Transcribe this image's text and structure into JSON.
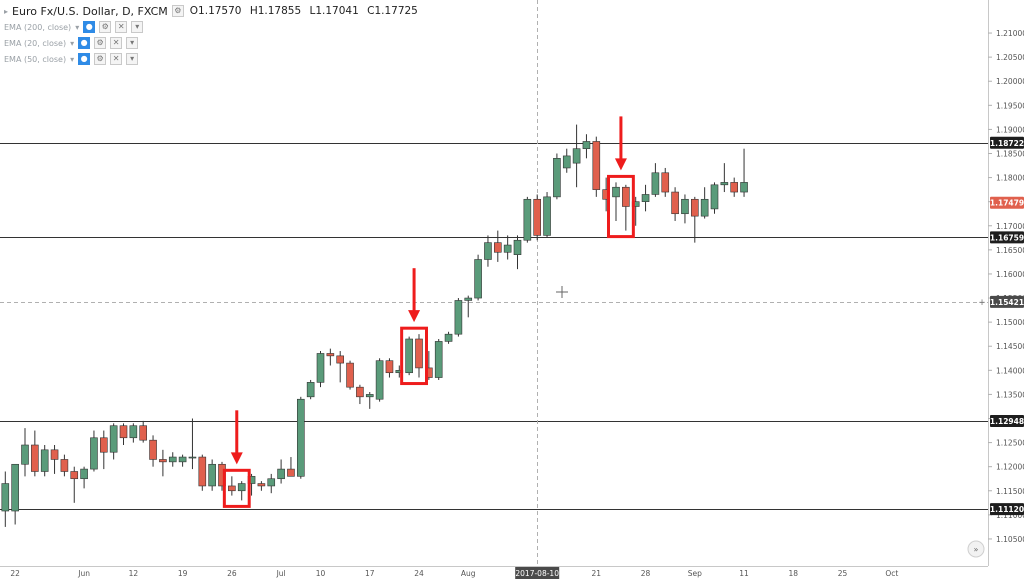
{
  "legend": {
    "title": "Euro Fx/U.S. Dollar, D, FXCM",
    "open": "O1.17570",
    "high": "H1.17855",
    "low": "L1.17041",
    "close": "C1.17725",
    "indicators": [
      "EMA (200, close)",
      "EMA (20, close)",
      "EMA (50, close)"
    ]
  },
  "colors": {
    "up": "#5a9b7a",
    "down": "#e0604d",
    "highlight": "#ee1c1c",
    "hline": "#333333",
    "axis_text": "#555555",
    "price_tag_bg": "#1e1e1e",
    "last_price_bg": "#e0604d"
  },
  "price_labels": [
    "1.21000",
    "1.20500",
    "1.20000",
    "1.19500",
    "1.19000",
    "1.18500",
    "1.18000",
    "1.17500",
    "1.17000",
    "1.16500",
    "1.16000",
    "1.15500",
    "1.15000",
    "1.14500",
    "1.14000",
    "1.13500",
    "1.13000",
    "1.12500",
    "1.12000",
    "1.11500",
    "1.11000",
    "1.10500"
  ],
  "price_tags": [
    {
      "value": 1.18722,
      "label": "1.18722"
    },
    {
      "value": 1.16759,
      "label": "1.16759"
    },
    {
      "value": 1.12948,
      "label": "1.12948"
    },
    {
      "value": 1.1112,
      "label": "1.11120"
    }
  ],
  "last_price": {
    "value": 1.17479,
    "label": "1.17479"
  },
  "crosshair_price": {
    "value": 1.15421,
    "label": "1.15421"
  },
  "date_labels": [
    {
      "label": "22",
      "index": 1
    },
    {
      "label": "Jun",
      "index": 8
    },
    {
      "label": "12",
      "index": 13
    },
    {
      "label": "19",
      "index": 18
    },
    {
      "label": "26",
      "index": 23
    },
    {
      "label": "Jul",
      "index": 28
    },
    {
      "label": "10",
      "index": 32
    },
    {
      "label": "17",
      "index": 37
    },
    {
      "label": "24",
      "index": 42
    },
    {
      "label": "Aug",
      "index": 47
    },
    {
      "label": "2017-08-10",
      "index": 54,
      "highlight": true
    },
    {
      "label": "21",
      "index": 60
    },
    {
      "label": "28",
      "index": 65
    },
    {
      "label": "Sep",
      "index": 70
    },
    {
      "label": "11",
      "index": 75
    },
    {
      "label": "18",
      "index": 80
    },
    {
      "label": "25",
      "index": 85
    },
    {
      "label": "Oct",
      "index": 90
    }
  ],
  "chart_data": {
    "type": "candlestick",
    "title": "Euro Fx/U.S. Dollar, D, FXCM",
    "ylim": [
      1.1025,
      1.2125
    ],
    "grid": false,
    "horizontal_lines": [
      1.18722,
      1.16759,
      1.12948,
      1.1112
    ],
    "candles": [
      {
        "o": 1.1108,
        "h": 1.119,
        "l": 1.1075,
        "c": 1.1165
      },
      {
        "o": 1.1108,
        "h": 1.1205,
        "l": 1.108,
        "c": 1.1205
      },
      {
        "o": 1.1205,
        "h": 1.128,
        "l": 1.118,
        "c": 1.1245
      },
      {
        "o": 1.1245,
        "h": 1.1275,
        "l": 1.118,
        "c": 1.119
      },
      {
        "o": 1.119,
        "h": 1.1245,
        "l": 1.118,
        "c": 1.1235
      },
      {
        "o": 1.1235,
        "h": 1.1245,
        "l": 1.1185,
        "c": 1.1215
      },
      {
        "o": 1.1215,
        "h": 1.1225,
        "l": 1.118,
        "c": 1.119
      },
      {
        "o": 1.119,
        "h": 1.12,
        "l": 1.1125,
        "c": 1.1175
      },
      {
        "o": 1.1175,
        "h": 1.12,
        "l": 1.1155,
        "c": 1.1195
      },
      {
        "o": 1.1195,
        "h": 1.1275,
        "l": 1.119,
        "c": 1.126
      },
      {
        "o": 1.126,
        "h": 1.1275,
        "l": 1.1195,
        "c": 1.123
      },
      {
        "o": 1.123,
        "h": 1.129,
        "l": 1.1215,
        "c": 1.1285
      },
      {
        "o": 1.1285,
        "h": 1.129,
        "l": 1.1245,
        "c": 1.126
      },
      {
        "o": 1.126,
        "h": 1.129,
        "l": 1.125,
        "c": 1.1285
      },
      {
        "o": 1.1285,
        "h": 1.1295,
        "l": 1.125,
        "c": 1.1255
      },
      {
        "o": 1.1255,
        "h": 1.1265,
        "l": 1.12,
        "c": 1.1215
      },
      {
        "o": 1.1215,
        "h": 1.1235,
        "l": 1.118,
        "c": 1.121
      },
      {
        "o": 1.121,
        "h": 1.123,
        "l": 1.12,
        "c": 1.122
      },
      {
        "o": 1.121,
        "h": 1.1225,
        "l": 1.12,
        "c": 1.122
      },
      {
        "o": 1.122,
        "h": 1.13,
        "l": 1.1195,
        "c": 1.122
      },
      {
        "o": 1.122,
        "h": 1.1225,
        "l": 1.115,
        "c": 1.116
      },
      {
        "o": 1.116,
        "h": 1.1215,
        "l": 1.115,
        "c": 1.1205
      },
      {
        "o": 1.1205,
        "h": 1.121,
        "l": 1.115,
        "c": 1.116
      },
      {
        "o": 1.116,
        "h": 1.118,
        "l": 1.114,
        "c": 1.115
      },
      {
        "o": 1.115,
        "h": 1.117,
        "l": 1.113,
        "c": 1.1165
      },
      {
        "o": 1.1165,
        "h": 1.1185,
        "l": 1.114,
        "c": 1.118
      },
      {
        "o": 1.1165,
        "h": 1.117,
        "l": 1.115,
        "c": 1.116
      },
      {
        "o": 1.116,
        "h": 1.1185,
        "l": 1.1145,
        "c": 1.1175
      },
      {
        "o": 1.1175,
        "h": 1.1215,
        "l": 1.1165,
        "c": 1.1195
      },
      {
        "o": 1.1195,
        "h": 1.122,
        "l": 1.1185,
        "c": 1.118
      },
      {
        "o": 1.118,
        "h": 1.1345,
        "l": 1.1175,
        "c": 1.134
      },
      {
        "o": 1.1345,
        "h": 1.138,
        "l": 1.134,
        "c": 1.1375
      },
      {
        "o": 1.1375,
        "h": 1.144,
        "l": 1.1365,
        "c": 1.1435
      },
      {
        "o": 1.1435,
        "h": 1.1445,
        "l": 1.141,
        "c": 1.143
      },
      {
        "o": 1.143,
        "h": 1.144,
        "l": 1.1375,
        "c": 1.1415
      },
      {
        "o": 1.1415,
        "h": 1.142,
        "l": 1.136,
        "c": 1.1365
      },
      {
        "o": 1.1365,
        "h": 1.137,
        "l": 1.133,
        "c": 1.1345
      },
      {
        "o": 1.1345,
        "h": 1.1355,
        "l": 1.132,
        "c": 1.135
      },
      {
        "o": 1.134,
        "h": 1.1425,
        "l": 1.1335,
        "c": 1.142
      },
      {
        "o": 1.142,
        "h": 1.1425,
        "l": 1.1385,
        "c": 1.1395
      },
      {
        "o": 1.1395,
        "h": 1.141,
        "l": 1.1385,
        "c": 1.14
      },
      {
        "o": 1.1395,
        "h": 1.147,
        "l": 1.139,
        "c": 1.1465
      },
      {
        "o": 1.1465,
        "h": 1.1475,
        "l": 1.1385,
        "c": 1.1405
      },
      {
        "o": 1.1405,
        "h": 1.144,
        "l": 1.138,
        "c": 1.1385
      },
      {
        "o": 1.1385,
        "h": 1.1465,
        "l": 1.138,
        "c": 1.146
      },
      {
        "o": 1.146,
        "h": 1.148,
        "l": 1.1455,
        "c": 1.1475
      },
      {
        "o": 1.1475,
        "h": 1.155,
        "l": 1.147,
        "c": 1.1545
      },
      {
        "o": 1.1545,
        "h": 1.1555,
        "l": 1.151,
        "c": 1.155
      },
      {
        "o": 1.155,
        "h": 1.164,
        "l": 1.1545,
        "c": 1.163
      },
      {
        "o": 1.163,
        "h": 1.168,
        "l": 1.1615,
        "c": 1.1665
      },
      {
        "o": 1.1665,
        "h": 1.169,
        "l": 1.1625,
        "c": 1.1645
      },
      {
        "o": 1.1645,
        "h": 1.168,
        "l": 1.163,
        "c": 1.166
      },
      {
        "o": 1.164,
        "h": 1.168,
        "l": 1.161,
        "c": 1.167
      },
      {
        "o": 1.167,
        "h": 1.176,
        "l": 1.1665,
        "c": 1.1755
      },
      {
        "o": 1.1755,
        "h": 1.1765,
        "l": 1.167,
        "c": 1.168
      },
      {
        "o": 1.168,
        "h": 1.177,
        "l": 1.1675,
        "c": 1.176
      },
      {
        "o": 1.176,
        "h": 1.185,
        "l": 1.1755,
        "c": 1.184
      },
      {
        "o": 1.182,
        "h": 1.186,
        "l": 1.181,
        "c": 1.1845
      },
      {
        "o": 1.183,
        "h": 1.191,
        "l": 1.178,
        "c": 1.186
      },
      {
        "o": 1.186,
        "h": 1.189,
        "l": 1.184,
        "c": 1.1875
      },
      {
        "o": 1.1875,
        "h": 1.1885,
        "l": 1.176,
        "c": 1.1775
      },
      {
        "o": 1.1775,
        "h": 1.18,
        "l": 1.173,
        "c": 1.1755
      },
      {
        "o": 1.176,
        "h": 1.179,
        "l": 1.171,
        "c": 1.178
      },
      {
        "o": 1.178,
        "h": 1.1785,
        "l": 1.169,
        "c": 1.174
      },
      {
        "o": 1.174,
        "h": 1.176,
        "l": 1.17,
        "c": 1.175
      },
      {
        "o": 1.175,
        "h": 1.1785,
        "l": 1.173,
        "c": 1.1765
      },
      {
        "o": 1.1765,
        "h": 1.183,
        "l": 1.176,
        "c": 1.181
      },
      {
        "o": 1.181,
        "h": 1.182,
        "l": 1.176,
        "c": 1.177
      },
      {
        "o": 1.177,
        "h": 1.178,
        "l": 1.171,
        "c": 1.1725
      },
      {
        "o": 1.1725,
        "h": 1.1765,
        "l": 1.1705,
        "c": 1.1755
      },
      {
        "o": 1.1755,
        "h": 1.176,
        "l": 1.1665,
        "c": 1.172
      },
      {
        "o": 1.172,
        "h": 1.178,
        "l": 1.1715,
        "c": 1.1755
      },
      {
        "o": 1.1735,
        "h": 1.179,
        "l": 1.1725,
        "c": 1.1785
      },
      {
        "o": 1.1785,
        "h": 1.183,
        "l": 1.177,
        "c": 1.179
      },
      {
        "o": 1.179,
        "h": 1.18,
        "l": 1.176,
        "c": 1.177
      },
      {
        "o": 1.177,
        "h": 1.186,
        "l": 1.176,
        "c": 1.179
      }
    ],
    "highlight_boxes": [
      {
        "from_index": 23,
        "to_index": 24
      },
      {
        "from_index": 41,
        "to_index": 42
      },
      {
        "from_index": 62,
        "to_index": 63
      }
    ]
  }
}
